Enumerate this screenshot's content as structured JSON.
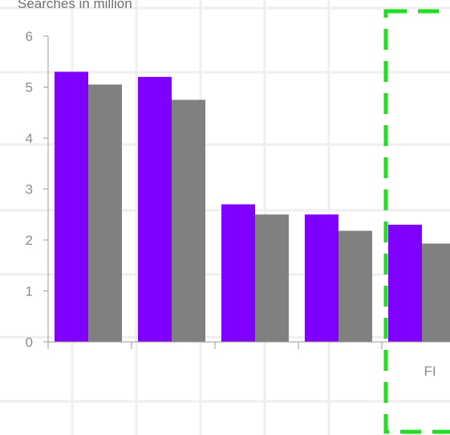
{
  "chart_data": {
    "type": "bar",
    "ylabel": "Searches in million",
    "categories": [
      "",
      "",
      "",
      "",
      "FI"
    ],
    "ylim": [
      0,
      6
    ],
    "yticks": [
      0,
      1,
      2,
      3,
      4,
      5,
      6
    ],
    "grid": true,
    "series": [
      {
        "color": "#8000ff",
        "values": [
          5.3,
          5.2,
          2.7,
          2.5,
          2.3
        ]
      },
      {
        "color": "#808080",
        "values": [
          5.05,
          4.75,
          2.5,
          2.18,
          1.93
        ]
      }
    ]
  },
  "highlight": {
    "color": "#22dd22",
    "style": "dashed"
  }
}
